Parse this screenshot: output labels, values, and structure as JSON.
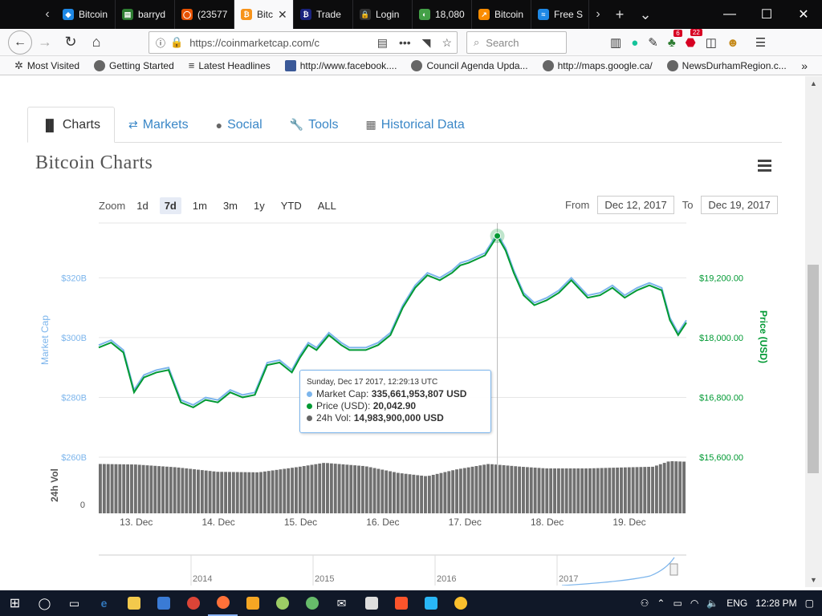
{
  "browser": {
    "tabs": [
      {
        "label": "Bitcoin",
        "color": "#1e88e5",
        "glyph": "◆"
      },
      {
        "label": "barryd",
        "color": "#2e7d32",
        "glyph": "▤"
      },
      {
        "label": "(23577",
        "color": "#e65100",
        "glyph": "◯"
      },
      {
        "label": "Bitc",
        "color": "#f7931a",
        "glyph": "₿"
      },
      {
        "label": "Trade",
        "color": "#1a237e",
        "glyph": "₿"
      },
      {
        "label": "Login",
        "color": "#333333",
        "glyph": "🔒"
      },
      {
        "label": "18,080",
        "color": "#43a047",
        "glyph": "◐"
      },
      {
        "label": "Bitcoin",
        "color": "#fb8c00",
        "glyph": "↗"
      },
      {
        "label": "Free S",
        "color": "#1e88e5",
        "glyph": "≈"
      }
    ],
    "active_tab_index": 3,
    "url": "https://coinmarketcap.com/c",
    "search_placeholder": "Search",
    "badge_counts": {
      "addon_a": "6",
      "addon_b": "22"
    },
    "bookmarks": [
      "Most Visited",
      "Getting Started",
      "Latest Headlines",
      "http://www.facebook....",
      "Council Agenda Upda...",
      "http://maps.google.ca/",
      "NewsDurhamRegion.c..."
    ]
  },
  "page": {
    "tabs": [
      {
        "label": "Charts",
        "icon": "bar-chart-icon"
      },
      {
        "label": "Markets",
        "icon": "exchange-icon"
      },
      {
        "label": "Social",
        "icon": "globe-icon"
      },
      {
        "label": "Tools",
        "icon": "wrench-icon"
      },
      {
        "label": "Historical Data",
        "icon": "calendar-icon"
      }
    ],
    "title": "Bitcoin Charts",
    "zoom_label": "Zoom",
    "zoom_options": [
      "1d",
      "7d",
      "1m",
      "3m",
      "1y",
      "YTD",
      "ALL"
    ],
    "zoom_selected": "7d",
    "from_label": "From",
    "from_value": "Dec 12, 2017",
    "to_label": "To",
    "to_value": "Dec 19, 2017"
  },
  "tooltip": {
    "date": "Sunday, Dec 17 2017, 12:29:13 UTC",
    "rows": [
      {
        "label": "Market Cap:",
        "value": "335,661,953,807 USD",
        "color": "#7cb5ec"
      },
      {
        "label": "Price (USD):",
        "value": "20,042.90",
        "color": "#009933"
      },
      {
        "label": "24h Vol:",
        "value": "14,983,900,000 USD",
        "color": "#666666"
      }
    ]
  },
  "chart_data": {
    "type": "line",
    "left_axis_label": "Market Cap",
    "right_axis_label": "Price (USD)",
    "volume_axis_label": "24h Vol",
    "left_ticks": [
      "$320B",
      "$300B",
      "$280B",
      "$260B"
    ],
    "left_tick_values": [
      320,
      300,
      280,
      260
    ],
    "right_ticks": [
      "$19,200.00",
      "$18,000.00",
      "$16,800.00",
      "$15,600.00"
    ],
    "right_tick_values": [
      19200,
      18000,
      16800,
      15600
    ],
    "volume_ticks": [
      "0"
    ],
    "x_ticks": [
      "13. Dec",
      "14. Dec",
      "15. Dec",
      "16. Dec",
      "17. Dec",
      "18. Dec",
      "19. Dec"
    ],
    "x_tick_values": [
      13,
      14,
      15,
      16,
      17,
      18,
      19
    ],
    "x_range": [
      12.55,
      19.7
    ],
    "price_range": [
      15600,
      20300
    ],
    "series": [
      {
        "name": "Price (USD)",
        "color": "#009933",
        "x": [
          12.55,
          12.7,
          12.85,
          12.98,
          13.1,
          13.25,
          13.4,
          13.55,
          13.7,
          13.85,
          14.0,
          14.15,
          14.3,
          14.45,
          14.6,
          14.75,
          14.9,
          15.0,
          15.1,
          15.2,
          15.35,
          15.5,
          15.6,
          15.8,
          15.95,
          16.1,
          16.25,
          16.4,
          16.55,
          16.7,
          16.85,
          16.95,
          17.05,
          17.25,
          17.4,
          17.5,
          17.6,
          17.72,
          17.85,
          18.0,
          18.15,
          18.3,
          18.5,
          18.65,
          18.8,
          18.95,
          19.1,
          19.25,
          19.4,
          19.5,
          19.6,
          19.7
        ],
        "y": [
          17800,
          17900,
          17700,
          16900,
          17200,
          17300,
          17350,
          16700,
          16600,
          16750,
          16700,
          16900,
          16800,
          16850,
          17450,
          17500,
          17300,
          17600,
          17850,
          17750,
          18050,
          17850,
          17750,
          17750,
          17850,
          18050,
          18600,
          19000,
          19250,
          19150,
          19300,
          19450,
          19500,
          19650,
          20040,
          19750,
          19300,
          18850,
          18650,
          18750,
          18900,
          19150,
          18800,
          18850,
          19000,
          18800,
          18950,
          19050,
          18950,
          18350,
          18050,
          18300
        ]
      }
    ],
    "volume": {
      "color": "#707070",
      "x": [
        12.55,
        13.0,
        13.5,
        14.0,
        14.5,
        15.0,
        15.3,
        15.8,
        16.2,
        16.55,
        16.9,
        17.3,
        17.7,
        18.0,
        18.5,
        19.0,
        19.3,
        19.5,
        19.7
      ],
      "y": [
        0.88,
        0.87,
        0.82,
        0.74,
        0.73,
        0.83,
        0.9,
        0.84,
        0.72,
        0.66,
        0.78,
        0.88,
        0.83,
        0.8,
        0.8,
        0.82,
        0.83,
        0.93,
        0.92
      ]
    },
    "hover_x": 17.4,
    "navigator_labels": [
      "2014",
      "2015",
      "2016",
      "2017"
    ]
  }
}
